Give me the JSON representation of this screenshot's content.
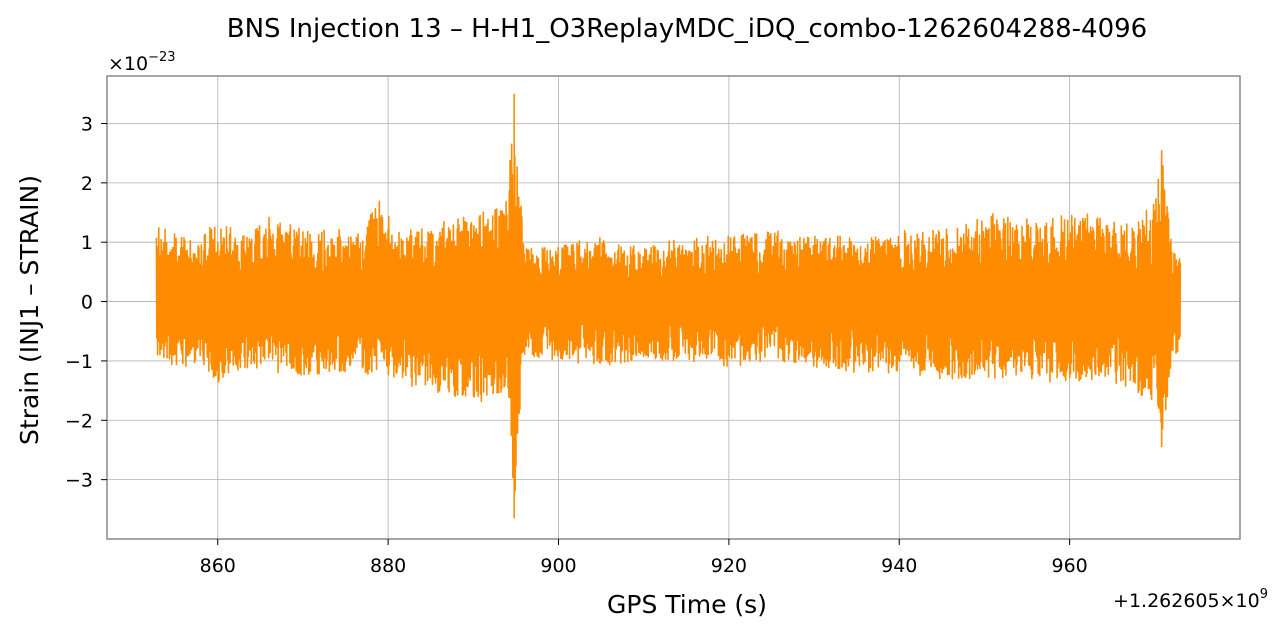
{
  "chart_data": {
    "type": "line",
    "title": "BNS Injection 13 – H-H1_O3ReplayMDC_iDQ_combo-1262604288-4096",
    "xlabel": "GPS Time (s)",
    "ylabel": "Strain (INJ1 – STRAIN)",
    "x_offset_text": "+1.262605×10",
    "x_offset_exponent": "9",
    "y_scale_text": "×10",
    "y_scale_exponent": "−23",
    "xlim": [
      847,
      980
    ],
    "ylim": [
      -4.0,
      3.8
    ],
    "xticks": [
      860,
      880,
      900,
      920,
      940,
      960
    ],
    "xtick_labels": [
      "860",
      "880",
      "900",
      "920",
      "940",
      "960"
    ],
    "yticks": [
      -3,
      -2,
      -1,
      0,
      1,
      2,
      3
    ],
    "ytick_labels": [
      "−3",
      "−2",
      "−1",
      "0",
      "1",
      "2",
      "3"
    ],
    "grid": true,
    "line_color": "#ff8c00",
    "series": [
      {
        "x_range": [
          852.8,
          973.0
        ],
        "envelope": [
          {
            "x": 853,
            "hi": 1.3,
            "lo": -0.9
          },
          {
            "x": 855,
            "hi": 1.3,
            "lo": -1.1
          },
          {
            "x": 857,
            "hi": 1.0,
            "lo": -1.1
          },
          {
            "x": 860,
            "hi": 1.4,
            "lo": -1.4
          },
          {
            "x": 863,
            "hi": 1.1,
            "lo": -1.1
          },
          {
            "x": 866,
            "hi": 1.5,
            "lo": -1.2
          },
          {
            "x": 870,
            "hi": 1.2,
            "lo": -1.3
          },
          {
            "x": 873,
            "hi": 1.3,
            "lo": -1.2
          },
          {
            "x": 876,
            "hi": 1.1,
            "lo": -1.2
          },
          {
            "x": 879,
            "hi": 1.7,
            "lo": -1.3
          },
          {
            "x": 882,
            "hi": 1.2,
            "lo": -1.4
          },
          {
            "x": 885,
            "hi": 1.3,
            "lo": -1.5
          },
          {
            "x": 888,
            "hi": 1.4,
            "lo": -1.6
          },
          {
            "x": 891,
            "hi": 1.5,
            "lo": -1.7
          },
          {
            "x": 894,
            "hi": 1.7,
            "lo": -1.6
          },
          {
            "x": 894.8,
            "hi": 3.5,
            "lo": -3.65
          },
          {
            "x": 896,
            "hi": 0.9,
            "lo": -0.9
          },
          {
            "x": 900,
            "hi": 1.0,
            "lo": -1.0
          },
          {
            "x": 905,
            "hi": 1.1,
            "lo": -1.1
          },
          {
            "x": 910,
            "hi": 0.9,
            "lo": -1.0
          },
          {
            "x": 915,
            "hi": 1.1,
            "lo": -1.0
          },
          {
            "x": 920,
            "hi": 1.1,
            "lo": -1.1
          },
          {
            "x": 925,
            "hi": 1.2,
            "lo": -1.0
          },
          {
            "x": 930,
            "hi": 1.1,
            "lo": -1.1
          },
          {
            "x": 935,
            "hi": 1.1,
            "lo": -1.2
          },
          {
            "x": 940,
            "hi": 1.2,
            "lo": -1.2
          },
          {
            "x": 945,
            "hi": 1.2,
            "lo": -1.3
          },
          {
            "x": 950,
            "hi": 1.5,
            "lo": -1.3
          },
          {
            "x": 955,
            "hi": 1.4,
            "lo": -1.3
          },
          {
            "x": 960,
            "hi": 1.5,
            "lo": -1.4
          },
          {
            "x": 963,
            "hi": 1.5,
            "lo": -1.3
          },
          {
            "x": 967,
            "hi": 1.3,
            "lo": -1.5
          },
          {
            "x": 970,
            "hi": 1.7,
            "lo": -1.7
          },
          {
            "x": 970.8,
            "hi": 2.55,
            "lo": -2.45
          },
          {
            "x": 972,
            "hi": 1.0,
            "lo": -1.0
          },
          {
            "x": 973,
            "hi": 0.7,
            "lo": -0.8
          }
        ]
      }
    ]
  }
}
